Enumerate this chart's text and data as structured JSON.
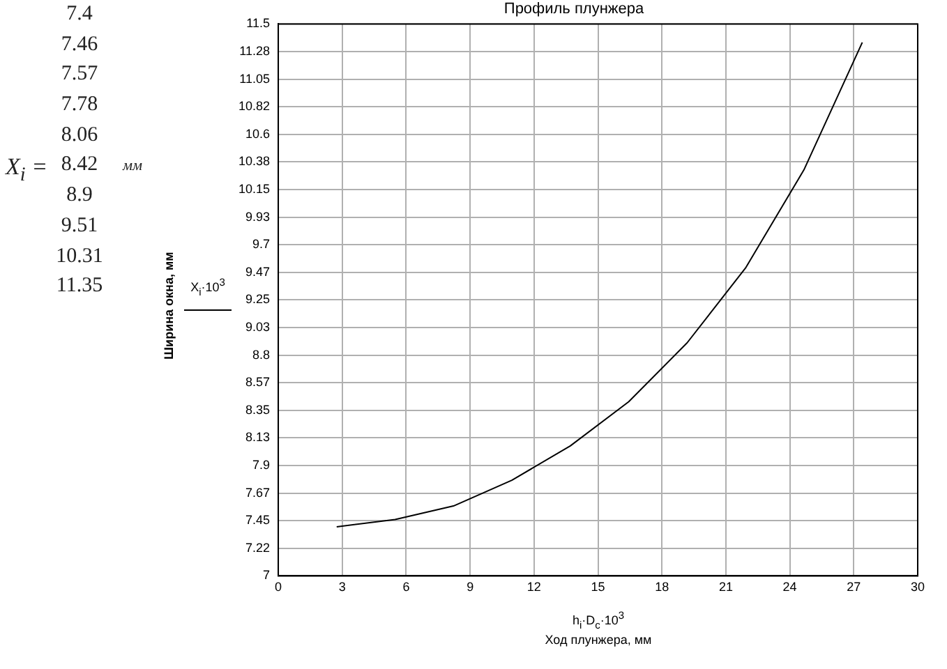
{
  "chart_data": {
    "type": "line",
    "title": "Профиль плунжера",
    "xlabel": "h$_{i}$·D$_{c}$·10$^{3}$\nХод плунжера, мм",
    "ylabel": "Ширина окна, мм",
    "x": [
      2.74,
      5.48,
      8.22,
      10.96,
      13.7,
      16.44,
      19.18,
      21.92,
      24.66,
      27.4
    ],
    "series": [
      {
        "name": "X$_{i}$·10$^{3}$",
        "color": "#000000",
        "values": [
          7.4,
          7.46,
          7.57,
          7.78,
          8.06,
          8.42,
          8.9,
          9.51,
          10.31,
          11.35
        ]
      }
    ],
    "xlim": [
      0,
      30
    ],
    "xticks": [
      0,
      3,
      6,
      9,
      12,
      15,
      18,
      21,
      24,
      27,
      30
    ],
    "ylim": [
      7,
      11.5
    ],
    "yticks": [
      7,
      {
        "value": 7.225,
        "label": "7.22"
      },
      7.45,
      {
        "value": 7.675,
        "label": "7.67"
      },
      7.9,
      {
        "value": 8.125,
        "label": "8.13"
      },
      8.35,
      {
        "value": 8.575,
        "label": "8.57"
      },
      8.8,
      {
        "value": 9.025,
        "label": "9.03"
      },
      9.25,
      {
        "value": 9.475,
        "label": "9.47"
      },
      9.7,
      {
        "value": 9.925,
        "label": "9.93"
      },
      10.15,
      {
        "value": 10.375,
        "label": "10.38"
      },
      10.6,
      {
        "value": 10.825,
        "label": "10.82"
      },
      11.05,
      {
        "value": 11.275,
        "label": "11.28"
      },
      11.5
    ],
    "grid": true,
    "legend": "left",
    "marker": "none",
    "line_style": "solid",
    "annotations": [
      "X$_{i}$ =",
      "7.4",
      "7.46",
      "7.57",
      "7.78",
      "8.06",
      "8.42",
      "8.9",
      "9.51",
      "10.31",
      "11.35",
      "мм"
    ]
  }
}
